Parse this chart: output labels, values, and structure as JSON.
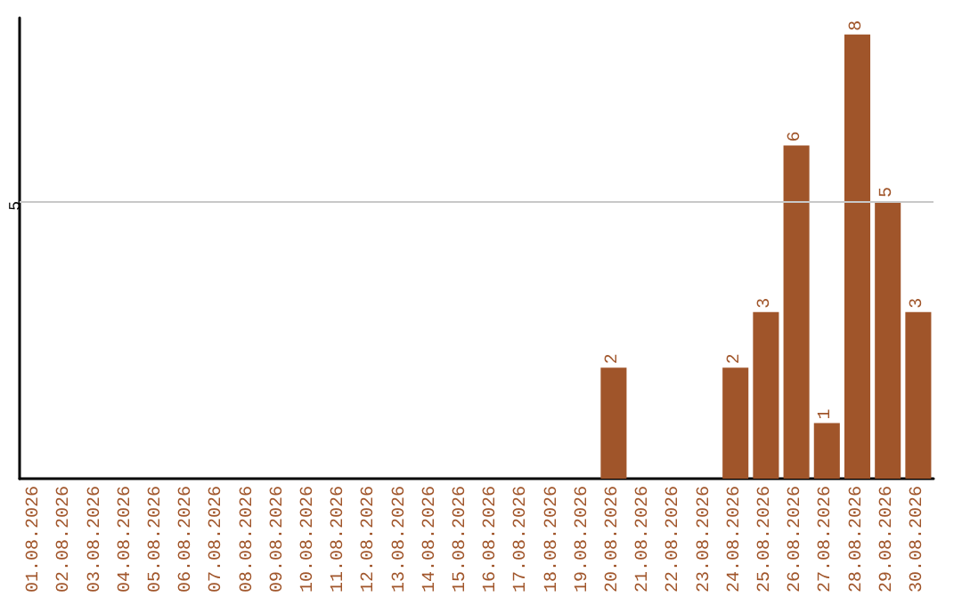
{
  "chart_data": {
    "type": "bar",
    "categories": [
      "01.08.2026",
      "02.08.2026",
      "03.08.2026",
      "04.08.2026",
      "05.08.2026",
      "06.08.2026",
      "07.08.2026",
      "08.08.2026",
      "09.08.2026",
      "10.08.2026",
      "11.08.2026",
      "12.08.2026",
      "13.08.2026",
      "14.08.2026",
      "15.08.2026",
      "16.08.2026",
      "17.08.2026",
      "18.08.2026",
      "19.08.2026",
      "20.08.2026",
      "21.08.2026",
      "22.08.2026",
      "23.08.2026",
      "24.08.2026",
      "25.08.2026",
      "26.08.2026",
      "27.08.2026",
      "28.08.2026",
      "29.08.2026",
      "30.08.2026"
    ],
    "values": [
      null,
      null,
      null,
      null,
      null,
      null,
      null,
      null,
      null,
      null,
      null,
      null,
      null,
      null,
      null,
      null,
      null,
      null,
      null,
      2,
      null,
      null,
      null,
      2,
      3,
      6,
      1,
      8,
      5,
      3
    ],
    "color": "#a0552a",
    "ylim": [
      0,
      8.3
    ],
    "ref_lines": [
      {
        "axis": "y",
        "value": 5,
        "label": "5",
        "color": "#c8c8c8"
      }
    ],
    "data_labels": true
  }
}
